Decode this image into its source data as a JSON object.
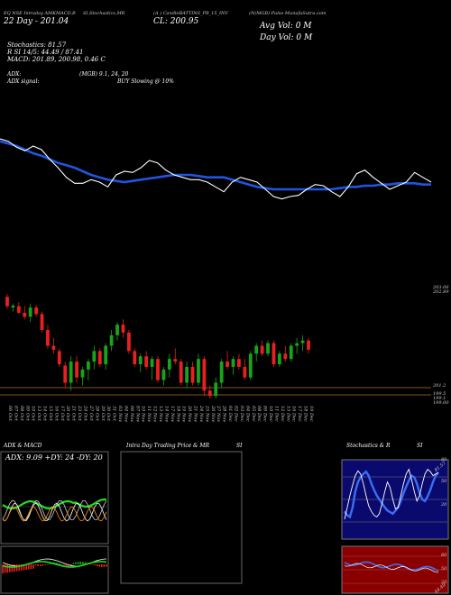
{
  "header": {
    "left_line1": "EQ NSE Intraday AMKMACD,B",
    "left_line2": "22 Day - 201.04",
    "mid1": "SI,Stochastics,MR",
    "mid2": "(A    ) CandleBATTINS_PR_15_INV",
    "right1": "(N(MGB) Pulse MunafaSutra.com",
    "cl": "CL: 200.95",
    "avg_vol": "Avg Vol: 0   M",
    "day_vol": "Day Vol: 0   M"
  },
  "info": {
    "stoch": "Stochastics: 81.57",
    "rsi": "R          SI 14/5: 44.49 / 87.41",
    "macd": "MACD: 201.89, 200.98, 0.46  C",
    "adx": "ADX:",
    "adx_mid": "(MGB) 9.1, 24, 20",
    "adx_signal": "ADX  signal:",
    "buy": "BUY Slowing @ 10%"
  },
  "price_axis": {
    "top_a": "203.06",
    "top_b": "202.89",
    "mid": "201.2",
    "low_a": "199.5",
    "low_b": "199.1",
    "low_c": "199.00"
  },
  "date_labels": [
    "06 Oct",
    "07 Oct",
    "08 Oct",
    "09 Oct",
    "10 Oct",
    "13 Oct",
    "14 Oct",
    "15 Oct",
    "16 Oct",
    "17 Oct",
    "20 Oct",
    "21 Oct",
    "23 Oct",
    "24 Oct",
    "27 Oct",
    "28 Oct",
    "29 Oct",
    "30 Oct",
    "31 Oct",
    "03 Nov",
    "04 Nov",
    "06 Nov",
    "07 Nov",
    "10 Nov",
    "11 Nov",
    "12 Nov",
    "13 Nov",
    "14 Nov",
    "17 Nov",
    "18 Nov",
    "19 Nov",
    "20 Nov",
    "21 Nov",
    "24 Nov",
    "25 Nov",
    "26 Nov",
    "27 Nov",
    "28 Nov",
    "01 Dec",
    "02 Dec",
    "03 Dec",
    "04 Dec",
    "05 Dec",
    "08 Dec",
    "09 Dec",
    "10 Dec",
    "11 Dec",
    "12 Dec",
    "15 Dec",
    "16 Dec",
    "17 Dec",
    "18 Dec",
    "19 Dec"
  ],
  "panels": {
    "adx_title": "ADX  & MACD",
    "adx_values": "ADX: 9.09  +DY: 24  -DY: 20",
    "intra_title": "Intra  Day Trading Price  & MR",
    "intra_title_si": "SI",
    "stoch_title": "Stochastics & R",
    "stoch_title_si": "SI",
    "stoch_ticks": [
      "80",
      "50",
      "20"
    ],
    "rsi_ticks": [
      "80",
      "50",
      "20"
    ],
    "stoch_value": "81.57",
    "rsi_value": "44.49"
  },
  "colors": {
    "up": "#19a319",
    "down": "#e82020",
    "ma": "#1f55e0",
    "line": "#ffffff",
    "stoch_bg": "#0a0a6e",
    "rsi_bg": "#8a0000",
    "band": "#b07020"
  },
  "chart_data": [
    {
      "type": "line",
      "title": "",
      "x": [
        "06 Oct",
        "07 Oct",
        "08 Oct",
        "09 Oct",
        "10 Oct",
        "13 Oct",
        "14 Oct",
        "15 Oct",
        "16 Oct",
        "17 Oct",
        "20 Oct",
        "21 Oct",
        "23 Oct",
        "24 Oct",
        "27 Oct",
        "28 Oct",
        "29 Oct",
        "30 Oct",
        "31 Oct",
        "03 Nov",
        "04 Nov",
        "06 Nov",
        "07 Nov",
        "10 Nov",
        "11 Nov",
        "12 Nov",
        "13 Nov",
        "14 Nov",
        "17 Nov",
        "18 Nov",
        "19 Nov",
        "20 Nov",
        "21 Nov",
        "24 Nov",
        "25 Nov",
        "26 Nov",
        "27 Nov",
        "28 Nov",
        "01 Dec",
        "02 Dec",
        "03 Dec",
        "04 Dec",
        "05 Dec",
        "08 Dec",
        "09 Dec",
        "10 Dec",
        "11 Dec",
        "12 Dec",
        "15 Dec",
        "16 Dec",
        "17 Dec",
        "18 Dec",
        "19 Dec"
      ],
      "series": [
        {
          "values": [
            203.0,
            202.98,
            202.96,
            202.93,
            202.9,
            202.88,
            202.85,
            202.82,
            202.8,
            202.78,
            202.75,
            202.72,
            202.7,
            202.68,
            202.67,
            202.66,
            202.67,
            202.68,
            202.69,
            202.7,
            202.71,
            202.72,
            202.72,
            202.72,
            202.71,
            202.7,
            202.7,
            202.7,
            202.68,
            202.66,
            202.64,
            202.62,
            202.61,
            202.6,
            202.6,
            202.6,
            202.6,
            202.6,
            202.6,
            202.6,
            202.6,
            202.61,
            202.62,
            202.62,
            202.63,
            202.63,
            202.64,
            202.64,
            202.65,
            202.65,
            202.65,
            202.64,
            202.64
          ]
        },
        {
          "values": [
            203.02,
            203.0,
            202.95,
            202.92,
            202.96,
            202.93,
            202.85,
            202.78,
            202.7,
            202.65,
            202.65,
            202.68,
            202.66,
            202.62,
            202.72,
            202.75,
            202.74,
            202.78,
            202.84,
            202.82,
            202.76,
            202.72,
            202.7,
            202.68,
            202.68,
            202.66,
            202.62,
            202.58,
            202.66,
            202.7,
            202.68,
            202.66,
            202.6,
            202.54,
            202.52,
            202.54,
            202.55,
            202.6,
            202.64,
            202.63,
            202.58,
            202.54,
            202.62,
            202.73,
            202.76,
            202.7,
            202.65,
            202.6,
            202.63,
            202.66,
            202.74,
            202.7,
            202.66
          ]
        }
      ],
      "ylim": [
        202.3,
        203.2
      ]
    },
    {
      "type": "candlestick",
      "title": "",
      "x": [
        "06 Oct",
        "07 Oct",
        "08 Oct",
        "09 Oct",
        "10 Oct",
        "13 Oct",
        "14 Oct",
        "15 Oct",
        "16 Oct",
        "17 Oct",
        "20 Oct",
        "21 Oct",
        "23 Oct",
        "24 Oct",
        "27 Oct",
        "28 Oct",
        "29 Oct",
        "30 Oct",
        "31 Oct",
        "03 Nov",
        "04 Nov",
        "06 Nov",
        "07 Nov",
        "10 Nov",
        "11 Nov",
        "12 Nov",
        "13 Nov",
        "14 Nov",
        "17 Nov",
        "18 Nov",
        "19 Nov",
        "20 Nov",
        "21 Nov",
        "24 Nov",
        "25 Nov",
        "26 Nov",
        "27 Nov",
        "28 Nov",
        "01 Dec",
        "02 Dec",
        "03 Dec",
        "04 Dec",
        "05 Dec",
        "08 Dec",
        "09 Dec",
        "10 Dec",
        "11 Dec",
        "12 Dec",
        "15 Dec",
        "16 Dec",
        "17 Dec",
        "18 Dec",
        "19 Dec"
      ],
      "ohlc": [
        [
          202.95,
          203.06,
          202.5,
          202.6
        ],
        [
          202.55,
          202.7,
          202.4,
          202.62
        ],
        [
          202.6,
          202.75,
          202.3,
          202.35
        ],
        [
          202.35,
          202.6,
          202.1,
          202.2
        ],
        [
          202.2,
          202.7,
          202.0,
          202.55
        ],
        [
          202.55,
          202.65,
          202.2,
          202.3
        ],
        [
          202.3,
          202.4,
          201.6,
          201.7
        ],
        [
          201.7,
          201.9,
          201.0,
          201.1
        ],
        [
          201.1,
          201.4,
          200.8,
          200.95
        ],
        [
          200.9,
          201.0,
          200.3,
          200.4
        ],
        [
          200.35,
          200.5,
          199.5,
          199.7
        ],
        [
          199.7,
          200.7,
          199.4,
          200.5
        ],
        [
          200.5,
          200.7,
          199.7,
          199.9
        ],
        [
          199.9,
          200.3,
          199.6,
          200.2
        ],
        [
          200.2,
          200.6,
          199.8,
          200.5
        ],
        [
          200.5,
          201.1,
          200.2,
          200.9
        ],
        [
          200.9,
          201.0,
          200.3,
          200.4
        ],
        [
          200.4,
          201.2,
          200.2,
          201.1
        ],
        [
          201.1,
          201.7,
          200.9,
          201.5
        ],
        [
          201.5,
          202.0,
          201.3,
          201.9
        ],
        [
          201.9,
          202.1,
          201.4,
          201.6
        ],
        [
          201.6,
          201.7,
          200.8,
          200.9
        ],
        [
          200.9,
          201.0,
          200.3,
          200.4
        ],
        [
          200.4,
          200.8,
          200.1,
          200.7
        ],
        [
          200.7,
          200.9,
          200.2,
          200.3
        ],
        [
          200.3,
          200.7,
          199.8,
          200.6
        ],
        [
          200.6,
          200.7,
          199.7,
          199.8
        ],
        [
          199.8,
          200.3,
          199.6,
          200.2
        ],
        [
          200.2,
          200.8,
          199.9,
          200.6
        ],
        [
          200.6,
          201.0,
          200.4,
          200.5
        ],
        [
          200.5,
          200.6,
          199.6,
          199.7
        ],
        [
          199.7,
          200.5,
          199.5,
          200.3
        ],
        [
          200.3,
          200.5,
          199.6,
          199.7
        ],
        [
          199.7,
          200.8,
          199.6,
          200.6
        ],
        [
          200.6,
          200.7,
          199.2,
          199.4
        ],
        [
          199.4,
          199.6,
          199.1,
          199.2
        ],
        [
          199.2,
          199.9,
          199.1,
          199.7
        ],
        [
          199.7,
          200.6,
          199.5,
          200.5
        ],
        [
          200.5,
          200.9,
          200.2,
          200.3
        ],
        [
          200.3,
          200.7,
          200.0,
          200.6
        ],
        [
          200.6,
          200.8,
          200.2,
          200.3
        ],
        [
          200.3,
          200.6,
          199.8,
          199.9
        ],
        [
          199.9,
          200.9,
          199.8,
          200.8
        ],
        [
          200.8,
          201.2,
          200.5,
          201.1
        ],
        [
          201.1,
          201.3,
          200.7,
          200.8
        ],
        [
          200.8,
          201.3,
          200.7,
          201.2
        ],
        [
          201.2,
          201.3,
          200.3,
          200.4
        ],
        [
          200.4,
          200.9,
          200.3,
          200.8
        ],
        [
          200.8,
          201.1,
          200.5,
          200.6
        ],
        [
          200.6,
          201.2,
          200.5,
          201.1
        ],
        [
          201.1,
          201.4,
          200.8,
          201.2
        ],
        [
          201.2,
          201.5,
          200.9,
          201.3
        ],
        [
          201.3,
          201.4,
          200.8,
          200.95
        ]
      ],
      "ylim": [
        199.0,
        203.1
      ]
    }
  ]
}
